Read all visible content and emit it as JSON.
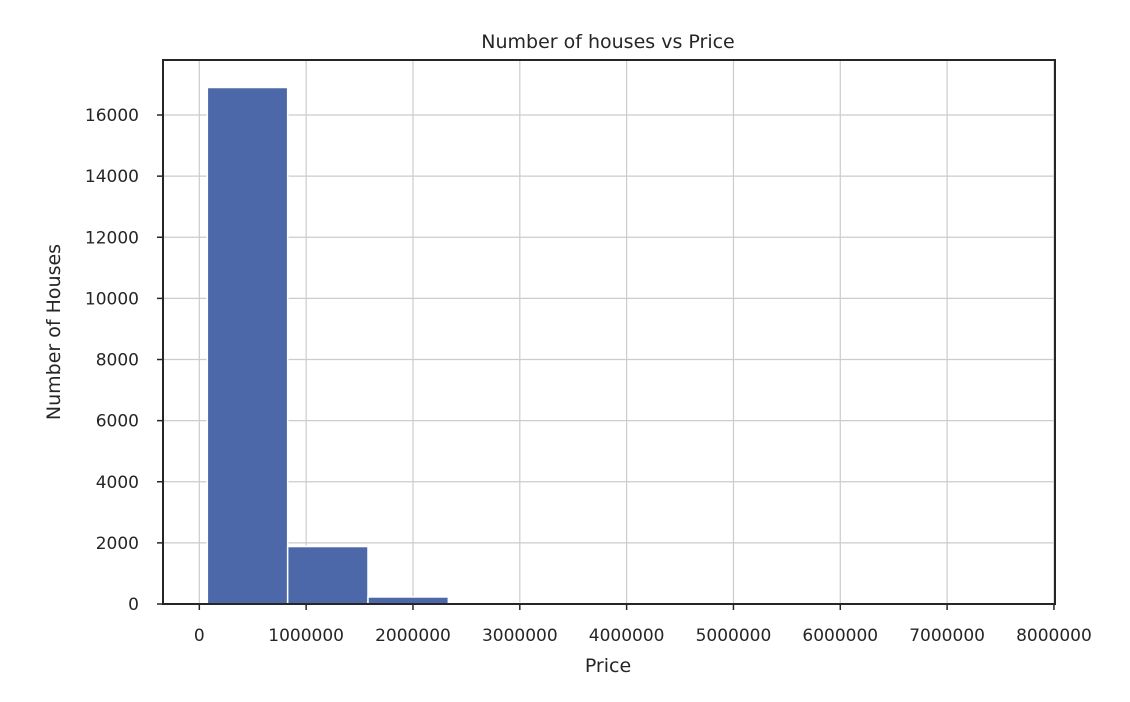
{
  "chart_data": {
    "type": "bar",
    "title": "Number of houses vs Price",
    "xlabel": "Price",
    "ylabel": "Number of Houses",
    "bins": [
      {
        "start": 75000,
        "end": 827000,
        "value": 16900
      },
      {
        "start": 827000,
        "end": 1579000,
        "value": 1880
      },
      {
        "start": 1579000,
        "end": 2331000,
        "value": 230
      },
      {
        "start": 2331000,
        "end": 3083000,
        "value": 25
      },
      {
        "start": 3083000,
        "end": 3835000,
        "value": 12
      },
      {
        "start": 3835000,
        "end": 4587000,
        "value": 5
      },
      {
        "start": 4587000,
        "end": 5339000,
        "value": 3
      },
      {
        "start": 5339000,
        "end": 6091000,
        "value": 1
      },
      {
        "start": 6091000,
        "end": 6843000,
        "value": 1
      },
      {
        "start": 6843000,
        "end": 7595000,
        "value": 1
      }
    ],
    "xlim": [
      -340000,
      8010000
    ],
    "ylim": [
      0,
      17800
    ],
    "xticks": [
      0,
      1000000,
      2000000,
      3000000,
      4000000,
      5000000,
      6000000,
      7000000,
      8000000
    ],
    "xtick_labels": [
      "0",
      "1000000",
      "2000000",
      "3000000",
      "4000000",
      "5000000",
      "6000000",
      "7000000",
      "8000000"
    ],
    "yticks": [
      0,
      2000,
      4000,
      6000,
      8000,
      10000,
      12000,
      14000,
      16000
    ],
    "ytick_labels": [
      "0",
      "2000",
      "4000",
      "6000",
      "8000",
      "10000",
      "12000",
      "14000",
      "16000"
    ],
    "grid": true,
    "bar_color": "#4c68a8"
  }
}
